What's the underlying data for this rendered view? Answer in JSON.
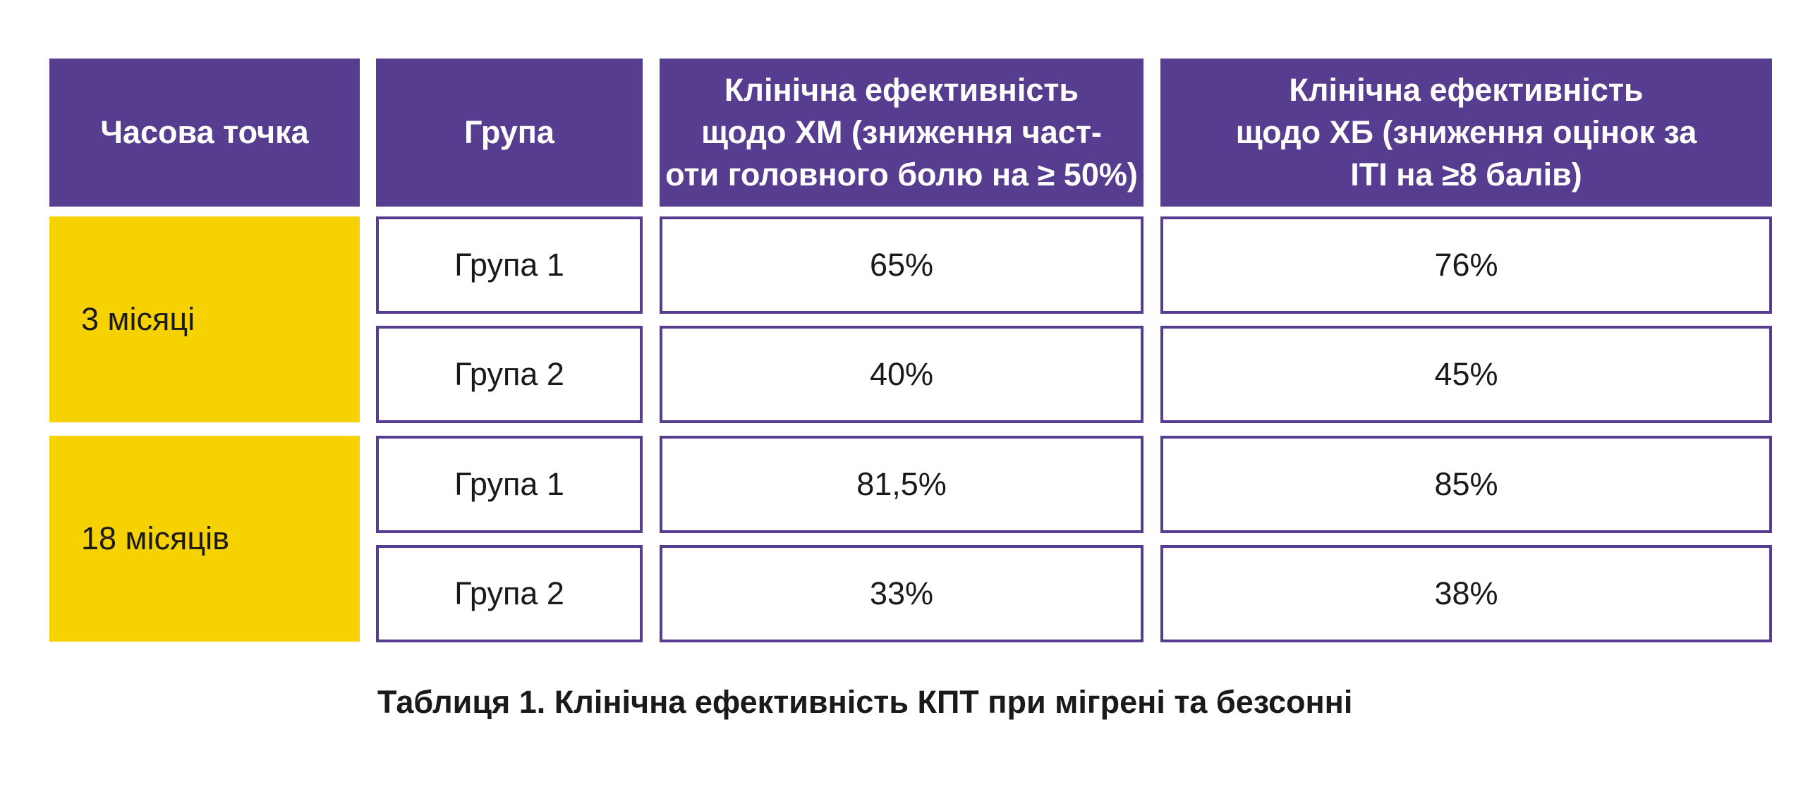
{
  "table": {
    "headers": [
      "Часова точка",
      "Група",
      "Клінічна ефективність щодо ХМ (зниження част-оти головного болю на ≥ 50%)",
      "Клінічна ефективність щодо ХБ (зниження оцінок за ІТІ на ≥8 балів)"
    ],
    "header_lines": {
      "col3": [
        "Клінічна ефективність",
        "щодо ХМ (зниження част-",
        "оти головного болю на ≥ 50%)"
      ],
      "col4": [
        "Клінічна ефективність",
        "щодо ХБ (зниження оцінок за",
        "ІТІ на ≥8 балів)"
      ]
    },
    "time_points": [
      "3 місяці",
      "18 місяців"
    ],
    "rows": [
      {
        "time": "3 місяці",
        "group": "Група 1",
        "xm": "65%",
        "xb": "76%"
      },
      {
        "time": "3 місяці",
        "group": "Група 2",
        "xm": "40%",
        "xb": "45%"
      },
      {
        "time": "18 місяців",
        "group": "Група 1",
        "xm": "81,5%",
        "xb": "85%"
      },
      {
        "time": "18 місяців",
        "group": "Група 2",
        "xm": "33%",
        "xb": "38%"
      }
    ]
  },
  "caption": "Таблиця 1. Клінічна ефективність КПТ при мігрені та безсонні",
  "colors": {
    "header_bg": "#563d8f",
    "time_bg": "#f7d202",
    "border": "#563d8f",
    "text": "#1a1a1a"
  }
}
